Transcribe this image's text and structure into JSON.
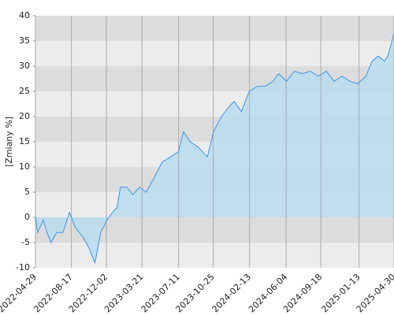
{
  "chart_data": {
    "type": "area",
    "y_label": "[Zmiany %]",
    "x": [
      "2022-04-29",
      "2022-05-06",
      "2022-05-23",
      "2022-06-03",
      "2022-06-16",
      "2022-07-03",
      "2022-07-22",
      "2022-08-11",
      "2022-08-29",
      "2022-09-22",
      "2022-10-09",
      "2022-10-28",
      "2022-11-15",
      "2022-12-04",
      "2022-12-21",
      "2023-01-04",
      "2023-01-14",
      "2023-02-02",
      "2023-02-21",
      "2023-03-13",
      "2023-04-03",
      "2023-04-28",
      "2023-05-22",
      "2023-06-16",
      "2023-07-10",
      "2023-07-26",
      "2023-08-15",
      "2023-09-08",
      "2023-10-07",
      "2023-10-26",
      "2023-11-19",
      "2023-12-13",
      "2023-12-28",
      "2024-01-19",
      "2024-02-12",
      "2024-03-08",
      "2024-04-01",
      "2024-04-25",
      "2024-05-12",
      "2024-06-05",
      "2024-06-29",
      "2024-07-24",
      "2024-08-17",
      "2024-09-10",
      "2024-10-05",
      "2024-10-29",
      "2024-11-22",
      "2024-12-16",
      "2025-01-09",
      "2025-02-03",
      "2025-02-22",
      "2025-03-13",
      "2025-04-01",
      "2025-04-11",
      "2025-04-30"
    ],
    "series": [
      {
        "color": "#3d95e8",
        "fill": "#b9dcee",
        "values": [
          0,
          -3,
          -0.5,
          -3,
          -5,
          -3,
          -3,
          1,
          -2,
          -4,
          -6,
          -9,
          -3,
          -0.5,
          1,
          2,
          6,
          6,
          4.5,
          6,
          5,
          8,
          11,
          12,
          13,
          17,
          15,
          14,
          12,
          17,
          20,
          22,
          23,
          21,
          25,
          26,
          26,
          27,
          28.5,
          27,
          29,
          28.5,
          29,
          28,
          29,
          27,
          28,
          27,
          26.5,
          28,
          31,
          32,
          31,
          32,
          36.5
        ]
      }
    ],
    "xlim": [
      "2022-04-29",
      "2025-04-30"
    ],
    "xticks": [
      "2022-04-29",
      "2022-08-17",
      "2022-12-02",
      "2023-03-21",
      "2023-07-11",
      "2023-10-25",
      "2024-02-13",
      "2024-06-04",
      "2024-09-18",
      "2025-01-13",
      "2025-04-30"
    ],
    "ylim": [
      -10,
      40
    ],
    "yticks": [
      -10,
      -5,
      0,
      5,
      10,
      15,
      20,
      25,
      30,
      35,
      40
    ],
    "band_colors": [
      "#ececec",
      "#dcdcdc"
    ],
    "grid": true
  }
}
